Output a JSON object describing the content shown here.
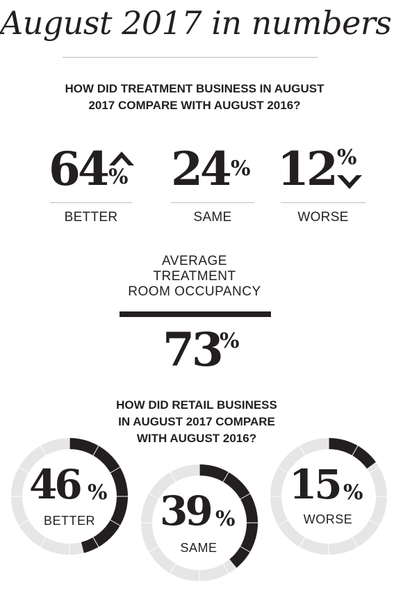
{
  "title": "August  2017 in numbers",
  "treatment": {
    "question_line1": "HOW DID TREATMENT BUSINESS IN AUGUST",
    "question_line2": "2017 COMPARE WITH AUGUST 2016?",
    "better": {
      "value": "64",
      "pct": "%",
      "label": "BETTER"
    },
    "same": {
      "value": "24",
      "pct": "%",
      "label": "SAME"
    },
    "worse": {
      "value": "12",
      "pct": "%",
      "label": "WORSE"
    }
  },
  "occupancy": {
    "title_line1": "AVERAGE",
    "title_line2": "TREATMENT",
    "title_line3": "ROOM OCCUPANCY",
    "value": "73",
    "pct": "%"
  },
  "retail": {
    "question_line1": "HOW DID RETAIL BUSINESS",
    "question_line2": "IN AUGUST 2017 COMPARE",
    "question_line3": "WITH AUGUST 2016?",
    "better": {
      "value": "46",
      "pct": "%",
      "label": "BETTER"
    },
    "same": {
      "value": "39",
      "pct": "%",
      "label": "SAME"
    },
    "worse": {
      "value": "15",
      "pct": "%",
      "label": "WORSE"
    }
  },
  "colors": {
    "dark": "#231f20",
    "ring_track": "#e6e6e6",
    "rule": "#bdbdbd"
  },
  "chart_data": [
    {
      "type": "table",
      "categories": [
        "BETTER",
        "SAME",
        "WORSE"
      ],
      "values": [
        64,
        24,
        12
      ],
      "unit": "%"
    },
    {
      "type": "table",
      "values": [
        73
      ],
      "unit": "%"
    },
    {
      "type": "pie",
      "categories": [
        "BETTER",
        "SAME",
        "WORSE"
      ],
      "values": [
        46,
        39,
        15
      ],
      "unit": "%"
    }
  ]
}
